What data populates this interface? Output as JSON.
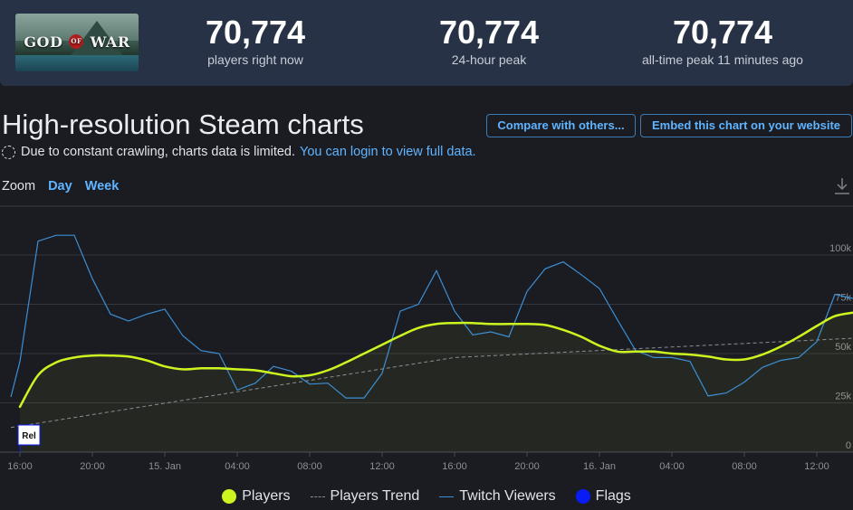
{
  "header": {
    "game_logo_text": "GOD OF WAR",
    "stats": [
      {
        "value": "70,774",
        "label": "players right now"
      },
      {
        "value": "70,774",
        "label": "24-hour peak"
      },
      {
        "value": "70,774",
        "label": "all-time peak 11 minutes ago"
      }
    ]
  },
  "page": {
    "title": "High-resolution Steam charts",
    "compare_label": "Compare with others...",
    "embed_label": "Embed this chart on your website",
    "notice_text": "Due to constant crawling, charts data is limited.",
    "login_text": "You can login to view full data.",
    "zoom_label": "Zoom",
    "zoom_day": "Day",
    "zoom_week": "Week"
  },
  "legend": {
    "players": "Players",
    "trend": "Players Trend",
    "twitch": "Twitch Viewers",
    "flags": "Flags"
  },
  "colors": {
    "players": "#ccf520",
    "trend": "#8a8d94",
    "twitch": "#3b8fd4",
    "flags": "#0a1cf5",
    "accent": "#5fb4ff"
  },
  "chart_data": {
    "type": "line",
    "x_unit": "hours from 16:00",
    "xlim": [
      -0.5,
      46.5
    ],
    "ylim": [
      0,
      110000
    ],
    "x_ticks": [
      {
        "x": 0,
        "label": "16:00"
      },
      {
        "x": 4,
        "label": "20:00"
      },
      {
        "x": 8,
        "label": "15. Jan"
      },
      {
        "x": 12,
        "label": "04:00"
      },
      {
        "x": 16,
        "label": "08:00"
      },
      {
        "x": 20,
        "label": "12:00"
      },
      {
        "x": 24,
        "label": "16:00"
      },
      {
        "x": 28,
        "label": "20:00"
      },
      {
        "x": 32,
        "label": "16. Jan"
      },
      {
        "x": 36,
        "label": "04:00"
      },
      {
        "x": 40,
        "label": "08:00"
      },
      {
        "x": 44,
        "label": "12:00"
      }
    ],
    "y_ticks": [
      {
        "y": 0,
        "label": "0"
      },
      {
        "y": 25000,
        "label": "25k"
      },
      {
        "y": 50000,
        "label": "50k"
      },
      {
        "y": 75000,
        "label": "75k"
      },
      {
        "y": 100000,
        "label": "100k"
      }
    ],
    "series": [
      {
        "name": "Players",
        "points": [
          [
            0,
            23000
          ],
          [
            1,
            39000
          ],
          [
            2,
            45500
          ],
          [
            3,
            48000
          ],
          [
            4,
            49000
          ],
          [
            5,
            49000
          ],
          [
            6,
            48500
          ],
          [
            7,
            46500
          ],
          [
            8,
            43500
          ],
          [
            9,
            42000
          ],
          [
            10,
            42500
          ],
          [
            11,
            42500
          ],
          [
            12,
            42000
          ],
          [
            13,
            41500
          ],
          [
            14,
            40000
          ],
          [
            15,
            38500
          ],
          [
            16,
            39000
          ],
          [
            17,
            41500
          ],
          [
            18,
            45500
          ],
          [
            19,
            50000
          ],
          [
            20,
            54500
          ],
          [
            21,
            59000
          ],
          [
            22,
            63000
          ],
          [
            23,
            65000
          ],
          [
            24,
            65500
          ],
          [
            25,
            65500
          ],
          [
            26,
            65000
          ],
          [
            27,
            65000
          ],
          [
            28,
            65000
          ],
          [
            29,
            64500
          ],
          [
            30,
            62000
          ],
          [
            31,
            58500
          ],
          [
            32,
            54000
          ],
          [
            33,
            51000
          ],
          [
            34,
            51000
          ],
          [
            35,
            51000
          ],
          [
            36,
            50000
          ],
          [
            37,
            49500
          ],
          [
            38,
            48500
          ],
          [
            39,
            47000
          ],
          [
            40,
            47000
          ],
          [
            41,
            49500
          ],
          [
            42,
            53500
          ],
          [
            43,
            58500
          ],
          [
            44,
            64000
          ],
          [
            45,
            69000
          ],
          [
            46,
            70774
          ]
        ]
      },
      {
        "name": "Players Trend",
        "points": [
          [
            -0.5,
            12500
          ],
          [
            24,
            48000
          ],
          [
            46.5,
            58000
          ]
        ]
      },
      {
        "name": "Twitch Viewers",
        "points": [
          [
            -0.5,
            28000
          ],
          [
            0,
            46000
          ],
          [
            1,
            107000
          ],
          [
            2,
            110000
          ],
          [
            3,
            110000
          ],
          [
            4,
            88000
          ],
          [
            5,
            70000
          ],
          [
            6,
            66500
          ],
          [
            7,
            70000
          ],
          [
            8,
            72500
          ],
          [
            9,
            59000
          ],
          [
            10,
            51500
          ],
          [
            11,
            50000
          ],
          [
            12,
            31500
          ],
          [
            13,
            35000
          ],
          [
            14,
            43500
          ],
          [
            15,
            41000
          ],
          [
            16,
            34500
          ],
          [
            17,
            35000
          ],
          [
            18,
            27500
          ],
          [
            19,
            27500
          ],
          [
            20,
            40000
          ],
          [
            21,
            71500
          ],
          [
            22,
            75000
          ],
          [
            23,
            92000
          ],
          [
            24,
            71500
          ],
          [
            25,
            59500
          ],
          [
            26,
            61000
          ],
          [
            27,
            58500
          ],
          [
            28,
            81500
          ],
          [
            29,
            93000
          ],
          [
            30,
            96500
          ],
          [
            31,
            90000
          ],
          [
            32,
            83000
          ],
          [
            33,
            67000
          ],
          [
            34,
            51500
          ],
          [
            35,
            48000
          ],
          [
            36,
            48000
          ],
          [
            37,
            46000
          ],
          [
            38,
            28500
          ],
          [
            39,
            30000
          ],
          [
            40,
            35500
          ],
          [
            41,
            43000
          ],
          [
            42,
            46500
          ],
          [
            43,
            48000
          ],
          [
            44,
            56000
          ],
          [
            45,
            80000
          ],
          [
            46,
            78000
          ]
        ]
      }
    ],
    "flags": [
      {
        "x": 0,
        "label": "Rel"
      }
    ]
  }
}
